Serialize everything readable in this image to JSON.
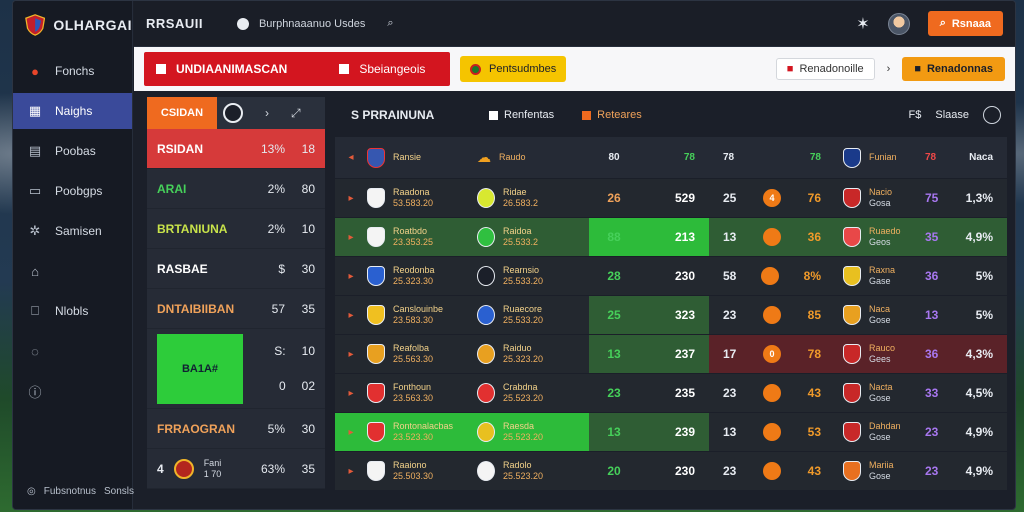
{
  "app": {
    "name": "OLHARGAI"
  },
  "sidebar": {
    "items": [
      {
        "label": "Fonchs",
        "icon": "ball-icon"
      },
      {
        "label": "Naighs",
        "icon": "grid-icon"
      },
      {
        "label": "Poobas",
        "icon": "calendar-icon"
      },
      {
        "label": "Poobgps",
        "icon": "folder-icon"
      },
      {
        "label": "Samisen",
        "icon": "share-icon"
      },
      {
        "label": "",
        "icon": "building-icon"
      },
      {
        "label": "Nlobls",
        "icon": "tag-icon"
      },
      {
        "label": "",
        "icon": "settings-icon"
      },
      {
        "label": "",
        "icon": "info-icon"
      }
    ],
    "footer": {
      "left": "Fubsnotnus",
      "right": "Sonsls"
    }
  },
  "topbar": {
    "title": "RRSAUII",
    "search_text": "Burphnaaanuo Usdes",
    "button": "Rsnaaa"
  },
  "banner": {
    "red_left": "UNDIAANIMASCAN",
    "red_right": "Sbeiangeois",
    "yellow": "Pentsudmbes",
    "pill": "Renadonoille",
    "orange": "Renadonnas"
  },
  "left_panel": {
    "tab": "CSIDAN",
    "rows": [
      {
        "name": "RSIDAN",
        "sub": "",
        "pct": "13%",
        "val": "18",
        "color": "#ffffff"
      },
      {
        "name": "ARAI",
        "pct": "2%",
        "val": "80",
        "color": "#46d05a"
      },
      {
        "name": "BRTANIUNA",
        "pct": "2%",
        "val": "10",
        "color": "#c8e34a"
      },
      {
        "name": "RASBAE",
        "pct": "$",
        "val": "30",
        "color": "#ffffff"
      },
      {
        "name": "DNTAIBIIBAN",
        "pct": "57",
        "val": "35",
        "color": "#f0a25a"
      }
    ],
    "tall": {
      "label": "BA1A#",
      "vals": [
        {
          "pct": "S:",
          "val": "10"
        },
        {
          "pct": "0",
          "val": "02"
        }
      ]
    },
    "rows2": [
      {
        "name": "FRRAOGRAN",
        "pct": "5%",
        "val": "30",
        "color": "#f0a25a"
      }
    ],
    "last": {
      "num": "4",
      "top": "Fani",
      "sub": "1 70",
      "pct": "63%",
      "val": "35"
    }
  },
  "main_panel": {
    "title": "S PRRAINUNA",
    "tab2": "Renfentas",
    "tab3": "Reteares",
    "right_label1": "F$",
    "right_label2": "Slaase",
    "header": {
      "home": "Ransie",
      "vs": "Raudo",
      "s1": "80",
      "s2": "78",
      "mid1": "78",
      "mid2": "78",
      "away": "Funian",
      "awaypct1": "78",
      "awaypct2": "Naca"
    },
    "rows": [
      {
        "home": "Raadona",
        "home_sub": "53.583.20",
        "vs": "Ridae",
        "vs_sub": "26.583.2",
        "s1": "26",
        "s2": "529",
        "m1": "25",
        "ball": "4",
        "m2": "76",
        "away": "Nacio",
        "away_sub": "Gosa",
        "ap1": "75",
        "ap2": "1,3%",
        "style": "plain",
        "c1": "#f0a25a",
        "c2": "#ffffff"
      },
      {
        "home": "Roatbdo",
        "home_sub": "23.353.25",
        "vs": "Raidoa",
        "vs_sub": "25.533.2",
        "s1": "88",
        "s2": "213",
        "m1": "13",
        "ball": "",
        "m2": "36",
        "away": "Ruaedo",
        "away_sub": "Geos",
        "ap1": "35",
        "ap2": "4,9%",
        "style": "green-bright",
        "c1": "#46d05a",
        "c2": "#ffffff"
      },
      {
        "home": "Reodonba",
        "home_sub": "25.323.30",
        "vs": "Rearnsio",
        "vs_sub": "25.533.20",
        "s1": "28",
        "s2": "230",
        "m1": "58",
        "ball": "",
        "m2": "8%",
        "away": "Raxna",
        "away_sub": "Gase",
        "ap1": "36",
        "ap2": "5%",
        "style": "plain",
        "c1": "#46d05a",
        "c2": "#ffffff"
      },
      {
        "home": "Canslouinbe",
        "home_sub": "23.583.30",
        "vs": "Ruaecore",
        "vs_sub": "25.533.20",
        "s1": "25",
        "s2": "323",
        "m1": "23",
        "ball": "",
        "m2": "85",
        "away": "Naca",
        "away_sub": "Gose",
        "ap1": "13",
        "ap2": "5%",
        "style": "plain",
        "c1": "#46d05a",
        "c2": "#ffffff"
      },
      {
        "home": "Reafolba",
        "home_sub": "25.563.30",
        "vs": "Raiduo",
        "vs_sub": "25.323.20",
        "s1": "13",
        "s2": "237",
        "m1": "17",
        "ball": "0",
        "m2": "78",
        "away": "Rauco",
        "away_sub": "Gees",
        "ap1": "36",
        "ap2": "4,3%",
        "style": "red-right",
        "c1": "#46d05a",
        "c2": "#ffffff"
      },
      {
        "home": "Fonthoun",
        "home_sub": "23.563.30",
        "vs": "Crabdna",
        "vs_sub": "25.523.20",
        "s1": "23",
        "s2": "235",
        "m1": "23",
        "ball": "",
        "m2": "43",
        "away": "Nacta",
        "away_sub": "Gose",
        "ap1": "33",
        "ap2": "4,5%",
        "style": "plain",
        "c1": "#46d05a",
        "c2": "#ffffff"
      },
      {
        "home": "Rontonalacbas",
        "home_sub": "23.523.30",
        "vs": "Raesda",
        "vs_sub": "25.523.20",
        "s1": "13",
        "s2": "239",
        "m1": "13",
        "ball": "",
        "m2": "53",
        "away": "Dahdan",
        "away_sub": "Gose",
        "ap1": "23",
        "ap2": "4,9%",
        "style": "green-left",
        "c1": "#46d05a",
        "c2": "#ffffff"
      },
      {
        "home": "Raaiono",
        "home_sub": "25.503.30",
        "vs": "Radolo",
        "vs_sub": "25.523.20",
        "s1": "20",
        "s2": "230",
        "m1": "23",
        "ball": "",
        "m2": "43",
        "away": "Mariia",
        "away_sub": "Gose",
        "ap1": "23",
        "ap2": "4,9%",
        "style": "plain",
        "c1": "#46d05a",
        "c2": "#ffffff"
      }
    ]
  }
}
